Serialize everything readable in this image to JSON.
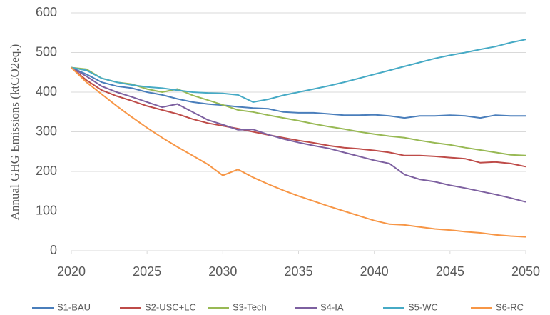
{
  "chart_data": {
    "type": "line",
    "y_label": "Annual GHG Emissions (ktCO2eq.)",
    "x": [
      2020,
      2021,
      2022,
      2023,
      2024,
      2025,
      2026,
      2027,
      2028,
      2029,
      2030,
      2031,
      2032,
      2033,
      2034,
      2035,
      2036,
      2037,
      2038,
      2039,
      2040,
      2041,
      2042,
      2043,
      2044,
      2045,
      2046,
      2047,
      2048,
      2049,
      2050
    ],
    "xlim": [
      2020,
      2050
    ],
    "xticks": [
      2020,
      2025,
      2030,
      2035,
      2040,
      2045,
      2050
    ],
    "ylim": [
      0,
      600
    ],
    "yticks": [
      0,
      100,
      200,
      300,
      400,
      500,
      600
    ],
    "grid": true,
    "legend": "bottom",
    "series": [
      {
        "name": "S1-BAU",
        "color": "#4a7ebb",
        "values": [
          462,
          445,
          425,
          415,
          410,
          400,
          393,
          383,
          375,
          370,
          367,
          363,
          360,
          358,
          350,
          348,
          348,
          345,
          342,
          342,
          343,
          340,
          335,
          340,
          340,
          342,
          340,
          335,
          342,
          340,
          340
        ]
      },
      {
        "name": "S2-USC+LC",
        "color": "#be4b48",
        "values": [
          462,
          430,
          405,
          390,
          378,
          365,
          355,
          345,
          332,
          322,
          315,
          308,
          300,
          292,
          285,
          278,
          272,
          265,
          260,
          257,
          253,
          248,
          240,
          240,
          238,
          235,
          232,
          222,
          224,
          220,
          212
        ]
      },
      {
        "name": "S3-Tech",
        "color": "#98b954",
        "values": [
          462,
          458,
          435,
          425,
          420,
          408,
          400,
          408,
          392,
          380,
          368,
          355,
          350,
          342,
          335,
          328,
          320,
          313,
          307,
          300,
          294,
          289,
          285,
          278,
          272,
          267,
          260,
          254,
          248,
          242,
          240
        ]
      },
      {
        "name": "S4-IA",
        "color": "#7d60a0",
        "values": [
          462,
          440,
          415,
          400,
          388,
          375,
          362,
          370,
          350,
          330,
          318,
          305,
          306,
          293,
          282,
          273,
          265,
          258,
          248,
          238,
          228,
          220,
          192,
          180,
          174,
          165,
          158,
          150,
          142,
          133,
          123
        ]
      },
      {
        "name": "S5-WC",
        "color": "#46aac5",
        "values": [
          462,
          455,
          435,
          425,
          418,
          413,
          410,
          405,
          400,
          398,
          397,
          393,
          375,
          382,
          392,
          400,
          408,
          416,
          425,
          435,
          445,
          455,
          465,
          475,
          485,
          493,
          500,
          508,
          515,
          525,
          533
        ]
      },
      {
        "name": "S6-RC",
        "color": "#f79646",
        "values": [
          462,
          425,
          395,
          365,
          337,
          310,
          285,
          262,
          240,
          218,
          190,
          205,
          185,
          168,
          152,
          138,
          125,
          112,
          100,
          88,
          76,
          67,
          65,
          60,
          55,
          52,
          48,
          45,
          40,
          37,
          35
        ]
      }
    ]
  }
}
